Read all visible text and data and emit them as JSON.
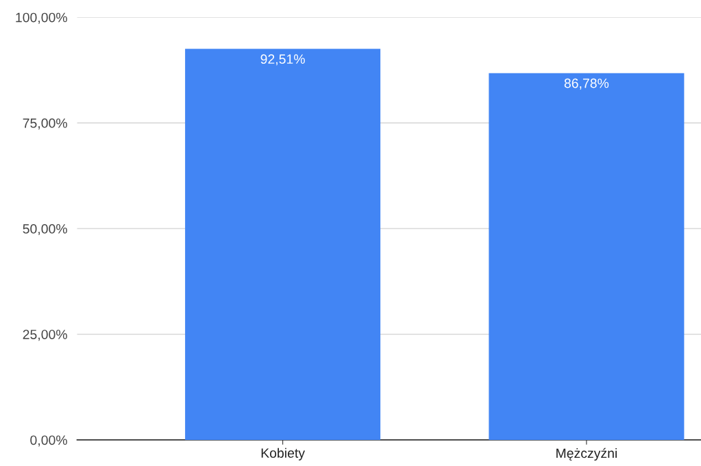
{
  "chart_data": {
    "type": "bar",
    "categories": [
      "Kobiety",
      "Mężczyźni"
    ],
    "values": [
      92.51,
      86.78
    ],
    "value_labels": [
      "92,51%",
      "86,78%"
    ],
    "color": "#4285f4",
    "ylim": [
      0,
      100
    ],
    "yticks": [
      {
        "value": 0,
        "label": "0,00%"
      },
      {
        "value": 25,
        "label": "25,00%"
      },
      {
        "value": 50,
        "label": "50,00%"
      },
      {
        "value": 75,
        "label": "75,00%"
      },
      {
        "value": 100,
        "label": "100,00%"
      }
    ],
    "grid": "y",
    "legend": false
  }
}
